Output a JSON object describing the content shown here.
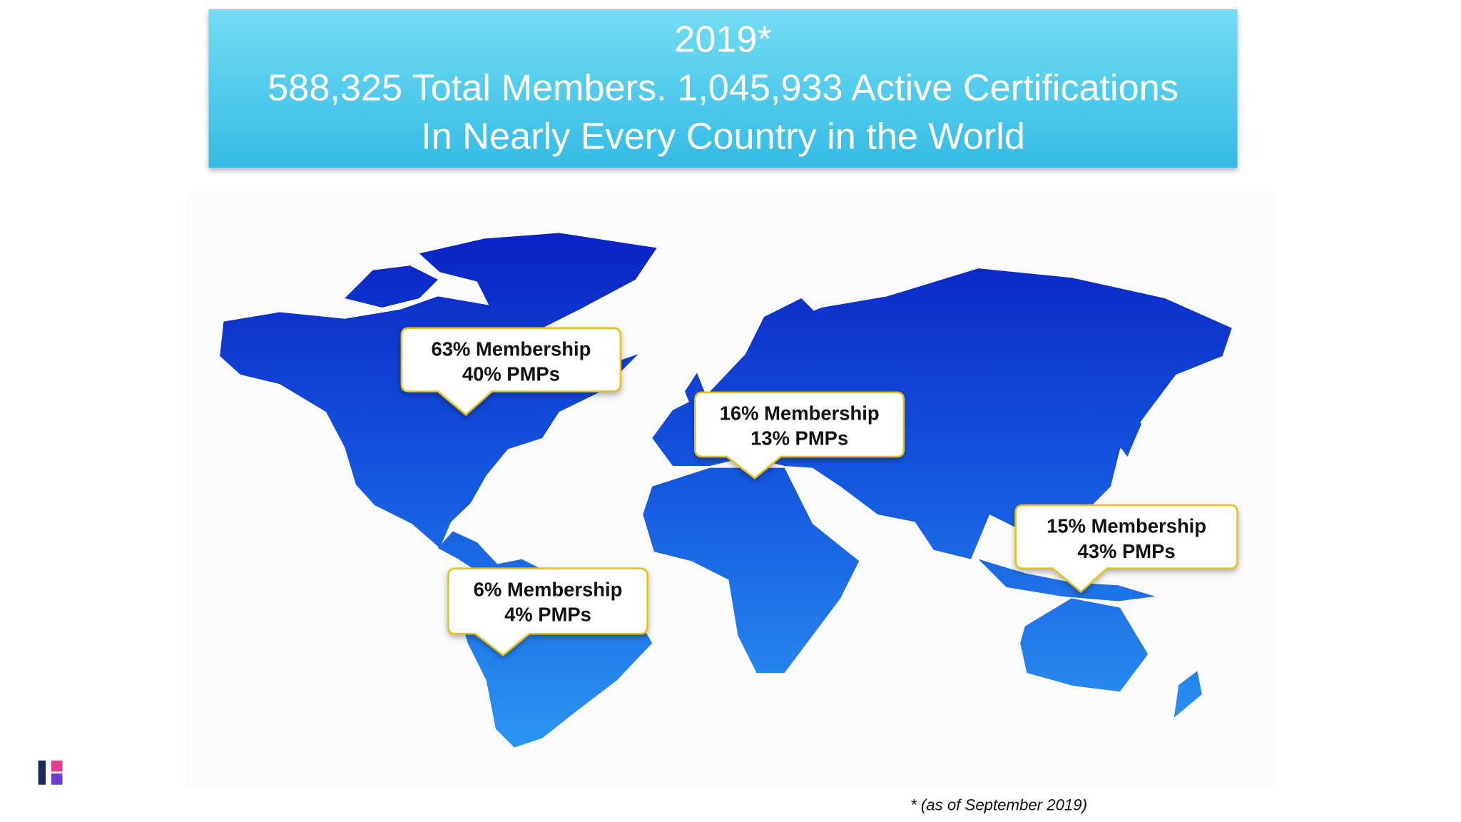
{
  "header": {
    "lines": [
      "2019*",
      "588,325 Total Members. 1,045,933 Active Certifications",
      "In Nearly Every Country in the World"
    ]
  },
  "callouts": [
    {
      "lines": [
        "63% Membership",
        "40% PMPs"
      ]
    },
    {
      "lines": [
        "16% Membership",
        "13% PMPs"
      ]
    },
    {
      "lines": [
        "15% Membership",
        "43% PMPs"
      ]
    },
    {
      "lines": [
        "6% Membership",
        "4% PMPs"
      ]
    }
  ],
  "footnote": "* (as of September 2019)"
}
